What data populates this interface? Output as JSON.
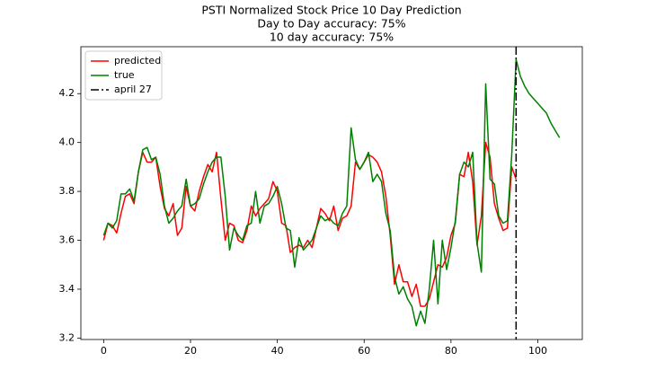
{
  "chart_data": {
    "type": "line",
    "title": [
      "PSTI Normalized Stock Price 10 Day Prediction",
      "Day to Day accuracy: 75%",
      "10 day accuracy: 75%"
    ],
    "xlim": [
      -5.25,
      110.25
    ],
    "xticks": [
      0,
      20,
      40,
      60,
      80,
      100
    ],
    "ylim": [
      3.194,
      4.392
    ],
    "yticks": [
      3.2,
      3.4,
      3.6,
      3.8,
      {
        "value": 4,
        "label": "4.0"
      },
      4.2
    ],
    "legend": "upper left",
    "series": [
      {
        "name": "predicted",
        "color": "#ff0000",
        "x": [
          0,
          1,
          2,
          3,
          4,
          5,
          6,
          7,
          8,
          9,
          10,
          11,
          12,
          13,
          14,
          15,
          16,
          17,
          18,
          19,
          20,
          21,
          22,
          23,
          24,
          25,
          26,
          27,
          28,
          29,
          30,
          31,
          32,
          33,
          34,
          35,
          36,
          37,
          38,
          39,
          40,
          41,
          42,
          43,
          44,
          45,
          46,
          47,
          48,
          49,
          50,
          51,
          52,
          53,
          54,
          55,
          56,
          57,
          58,
          59,
          60,
          61,
          62,
          63,
          64,
          65,
          66,
          67,
          68,
          69,
          70,
          71,
          72,
          73,
          74,
          75,
          76,
          77,
          78,
          79,
          80,
          81,
          82,
          83,
          84,
          85,
          86,
          87,
          88,
          89,
          90,
          91,
          92,
          93,
          94,
          95
        ],
        "values": [
          3.6,
          3.67,
          3.66,
          3.63,
          3.71,
          3.78,
          3.79,
          3.75,
          3.88,
          3.96,
          3.92,
          3.92,
          3.94,
          3.82,
          3.73,
          3.7,
          3.75,
          3.62,
          3.65,
          3.82,
          3.74,
          3.72,
          3.8,
          3.86,
          3.91,
          3.88,
          3.96,
          3.77,
          3.6,
          3.67,
          3.66,
          3.6,
          3.59,
          3.64,
          3.74,
          3.7,
          3.73,
          3.75,
          3.77,
          3.84,
          3.8,
          3.67,
          3.66,
          3.55,
          3.57,
          3.58,
          3.57,
          3.6,
          3.57,
          3.65,
          3.73,
          3.71,
          3.68,
          3.74,
          3.64,
          3.69,
          3.7,
          3.74,
          3.92,
          3.89,
          3.92,
          3.95,
          3.94,
          3.92,
          3.88,
          3.78,
          3.62,
          3.42,
          3.5,
          3.43,
          3.43,
          3.37,
          3.42,
          3.33,
          3.33,
          3.36,
          3.43,
          3.5,
          3.49,
          3.53,
          3.62,
          3.67,
          3.87,
          3.86,
          3.96,
          3.84,
          3.58,
          3.7,
          4.0,
          3.94,
          3.75,
          3.69,
          3.64,
          3.65,
          3.9,
          3.85
        ]
      },
      {
        "name": "true",
        "color": "#008000",
        "x": [
          0,
          1,
          2,
          3,
          4,
          5,
          6,
          7,
          8,
          9,
          10,
          11,
          12,
          13,
          14,
          15,
          16,
          17,
          18,
          19,
          20,
          21,
          22,
          23,
          24,
          25,
          26,
          27,
          28,
          29,
          30,
          31,
          32,
          33,
          34,
          35,
          36,
          37,
          38,
          39,
          40,
          41,
          42,
          43,
          44,
          45,
          46,
          47,
          48,
          49,
          50,
          51,
          52,
          53,
          54,
          55,
          56,
          57,
          58,
          59,
          60,
          61,
          62,
          63,
          64,
          65,
          66,
          67,
          68,
          69,
          70,
          71,
          72,
          73,
          74,
          75,
          76,
          77,
          78,
          79,
          80,
          81,
          82,
          83,
          84,
          85,
          86,
          87,
          88,
          89,
          90,
          91,
          92,
          93,
          94,
          95,
          96,
          97,
          98,
          99,
          100,
          101,
          102,
          103,
          104,
          105
        ],
        "values": [
          3.62,
          3.67,
          3.65,
          3.68,
          3.79,
          3.79,
          3.81,
          3.76,
          3.88,
          3.97,
          3.98,
          3.93,
          3.94,
          3.87,
          3.74,
          3.67,
          3.69,
          3.72,
          3.74,
          3.85,
          3.74,
          3.75,
          3.77,
          3.83,
          3.88,
          3.92,
          3.94,
          3.94,
          3.78,
          3.56,
          3.65,
          3.62,
          3.6,
          3.66,
          3.67,
          3.8,
          3.67,
          3.74,
          3.75,
          3.78,
          3.82,
          3.75,
          3.65,
          3.64,
          3.49,
          3.61,
          3.56,
          3.58,
          3.6,
          3.65,
          3.7,
          3.68,
          3.69,
          3.67,
          3.66,
          3.71,
          3.74,
          4.06,
          3.93,
          3.89,
          3.92,
          3.96,
          3.84,
          3.87,
          3.84,
          3.71,
          3.64,
          3.45,
          3.38,
          3.41,
          3.36,
          3.33,
          3.25,
          3.31,
          3.26,
          3.4,
          3.6,
          3.34,
          3.6,
          3.48,
          3.57,
          3.68,
          3.87,
          3.92,
          3.9,
          3.96,
          3.59,
          3.47,
          4.24,
          3.85,
          3.83,
          3.7,
          3.67,
          3.68,
          3.95,
          4.34,
          4.27,
          4.23,
          4.2,
          4.18,
          4.16,
          4.14,
          4.12,
          4.08,
          4.05,
          4.02
        ]
      }
    ],
    "vlines": [
      {
        "name": "april 27",
        "color": "#000000",
        "x": 95
      }
    ]
  }
}
